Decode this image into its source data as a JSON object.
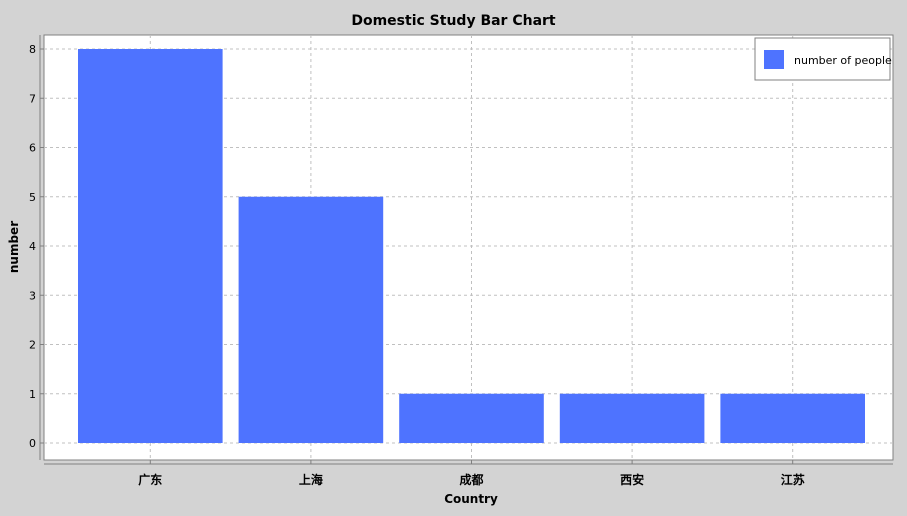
{
  "chart_data": {
    "type": "bar",
    "title": "Domestic Study Bar Chart",
    "xlabel": "Country",
    "ylabel": "number",
    "categories": [
      "广东",
      "上海",
      "成都",
      "西安",
      "江苏"
    ],
    "series": [
      {
        "name": "number of people",
        "values": [
          8,
          5,
          1,
          1,
          1
        ],
        "color": "#4e73ff"
      }
    ],
    "ylim": [
      0,
      8.5
    ],
    "yticks": [
      0,
      1,
      2,
      3,
      4,
      5,
      6,
      7,
      8
    ],
    "grid": true,
    "legend_position": "top-right"
  },
  "colors": {
    "background": "#d3d3d3",
    "plot_background": "#ffffff",
    "gridline": "#c0c0c0",
    "bar": "#4e73ff"
  }
}
